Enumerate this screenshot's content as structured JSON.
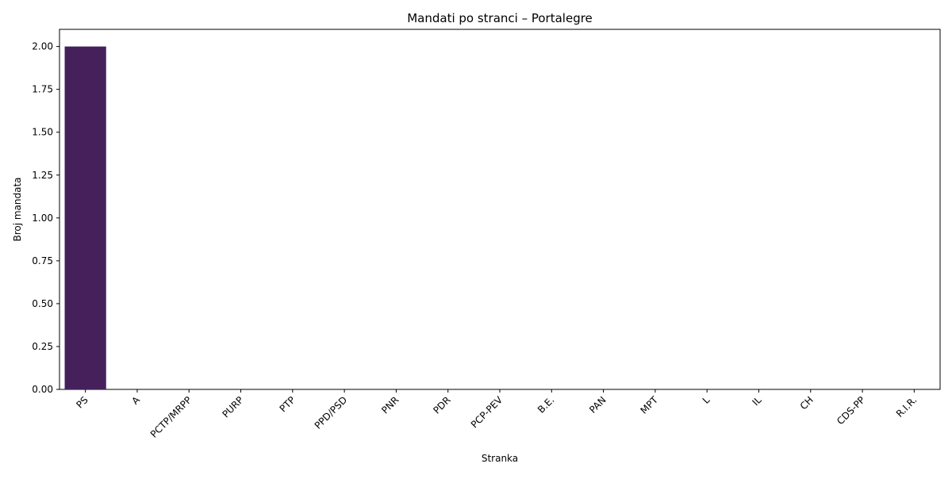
{
  "chart_data": {
    "type": "bar",
    "title": "Mandati po stranci – Portalegre",
    "xlabel": "Stranka",
    "ylabel": "Broj mandata",
    "categories": [
      "PS",
      "A",
      "PCTP/MRPP",
      "PURP",
      "PTP",
      "PPD/PSD",
      "PNR",
      "PDR",
      "PCP-PEV",
      "B.E.",
      "PAN",
      "MPT",
      "L",
      "IL",
      "CH",
      "CDS-PP",
      "R.I.R."
    ],
    "values": [
      2,
      0,
      0,
      0,
      0,
      0,
      0,
      0,
      0,
      0,
      0,
      0,
      0,
      0,
      0,
      0,
      0
    ],
    "ylim": [
      0,
      2.1
    ],
    "yticks": [
      "0.00",
      "0.25",
      "0.50",
      "0.75",
      "1.00",
      "1.25",
      "1.50",
      "1.75",
      "2.00"
    ],
    "bar_color": "#46205b",
    "grid": false,
    "legend": "none"
  }
}
